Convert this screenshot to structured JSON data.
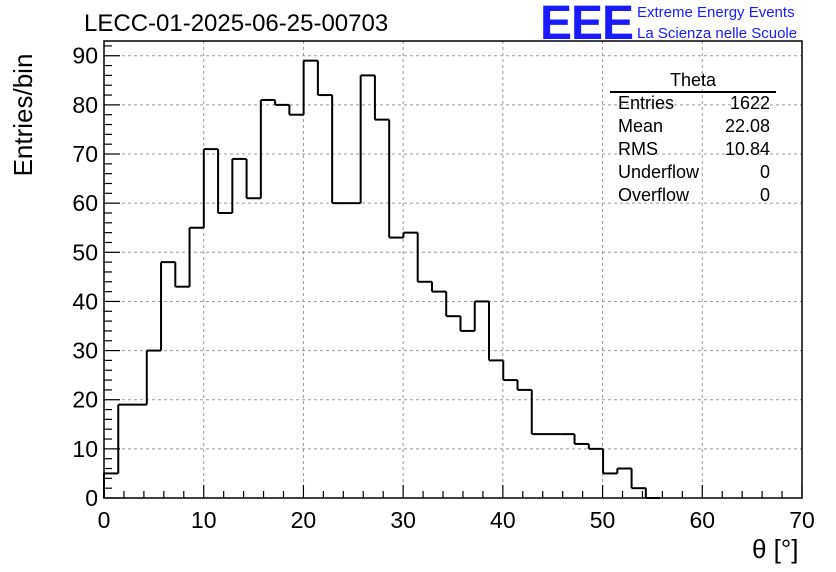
{
  "header": {
    "run_title": "LECC-01-2025-06-25-00703",
    "logo_text": "EEE",
    "logo_line1": "Extreme Energy Events",
    "logo_line2": "La Scienza nelle Scuole",
    "logo_color": "#1a1aff"
  },
  "stats": {
    "title": "Theta",
    "rows": [
      {
        "name": "Entries",
        "value": "1622"
      },
      {
        "name": "Mean",
        "value": "22.08"
      },
      {
        "name": "RMS",
        "value": "10.84"
      },
      {
        "name": "Underflow",
        "value": "0"
      },
      {
        "name": "Overflow",
        "value": "0"
      }
    ]
  },
  "chart_data": {
    "type": "bar",
    "title": "LECC-01-2025-06-25-00703",
    "xlabel": "θ [°]",
    "ylabel": "Entries/bin",
    "xlim": [
      0,
      70
    ],
    "ylim": [
      0,
      93
    ],
    "grid": true,
    "bin_width": 1.43,
    "bin_edges_start": 0,
    "values": [
      5,
      19,
      19,
      30,
      48,
      43,
      55,
      71,
      58,
      69,
      61,
      81,
      80,
      78,
      89,
      82,
      60,
      60,
      86,
      77,
      53,
      54,
      44,
      42,
      37,
      34,
      40,
      28,
      24,
      22,
      13,
      13,
      13,
      11,
      10,
      5,
      6,
      2,
      0
    ],
    "xticks": [
      0,
      10,
      20,
      30,
      40,
      50,
      60,
      70
    ],
    "yticks": [
      0,
      10,
      20,
      30,
      40,
      50,
      60,
      70,
      80,
      90
    ],
    "line_color": "#000000"
  }
}
